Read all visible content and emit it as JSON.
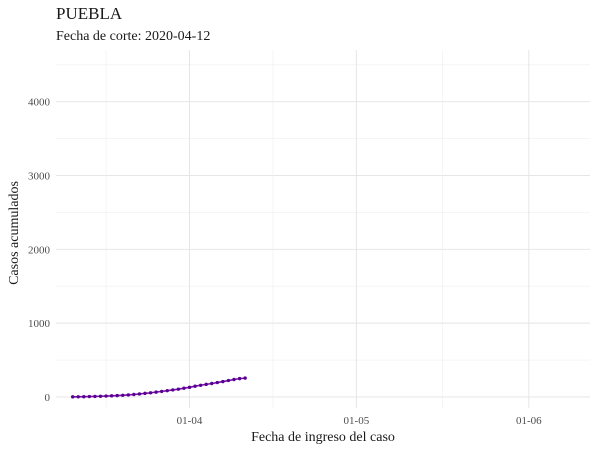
{
  "chart_data": {
    "type": "line",
    "title": "PUEBLA",
    "subtitle": "Fecha de corte: 2020-04-12",
    "xlabel": "Fecha de ingreso del caso",
    "ylabel": "Casos acumulados",
    "x_ticks": [
      {
        "date": "2020-04-01",
        "label": "01-04"
      },
      {
        "date": "2020-05-01",
        "label": "01-05"
      },
      {
        "date": "2020-06-01",
        "label": "01-06"
      }
    ],
    "y_ticks": [
      0,
      1000,
      2000,
      3000,
      4000
    ],
    "xlim": [
      "2020-03-08",
      "2020-06-12"
    ],
    "ylim": [
      -150,
      4700
    ],
    "grid": true,
    "line_color": "#7a0fb0",
    "point_color": "#5a0090",
    "series": [
      {
        "x": [
          "2020-03-11",
          "2020-03-12",
          "2020-03-13",
          "2020-03-14",
          "2020-03-15",
          "2020-03-16",
          "2020-03-17",
          "2020-03-18",
          "2020-03-19",
          "2020-03-20",
          "2020-03-21",
          "2020-03-22",
          "2020-03-23",
          "2020-03-24",
          "2020-03-25",
          "2020-03-26",
          "2020-03-27",
          "2020-03-28",
          "2020-03-29",
          "2020-03-30",
          "2020-03-31",
          "2020-04-01",
          "2020-04-02",
          "2020-04-03",
          "2020-04-04",
          "2020-04-05",
          "2020-04-06",
          "2020-04-07",
          "2020-04-08",
          "2020-04-09",
          "2020-04-10",
          "2020-04-11"
        ],
        "y": [
          1,
          2,
          3,
          5,
          7,
          9,
          12,
          15,
          18,
          22,
          27,
          33,
          40,
          48,
          56,
          65,
          75,
          85,
          95,
          105,
          118,
          130,
          145,
          158,
          170,
          182,
          195,
          208,
          222,
          236,
          248,
          255
        ]
      }
    ]
  }
}
